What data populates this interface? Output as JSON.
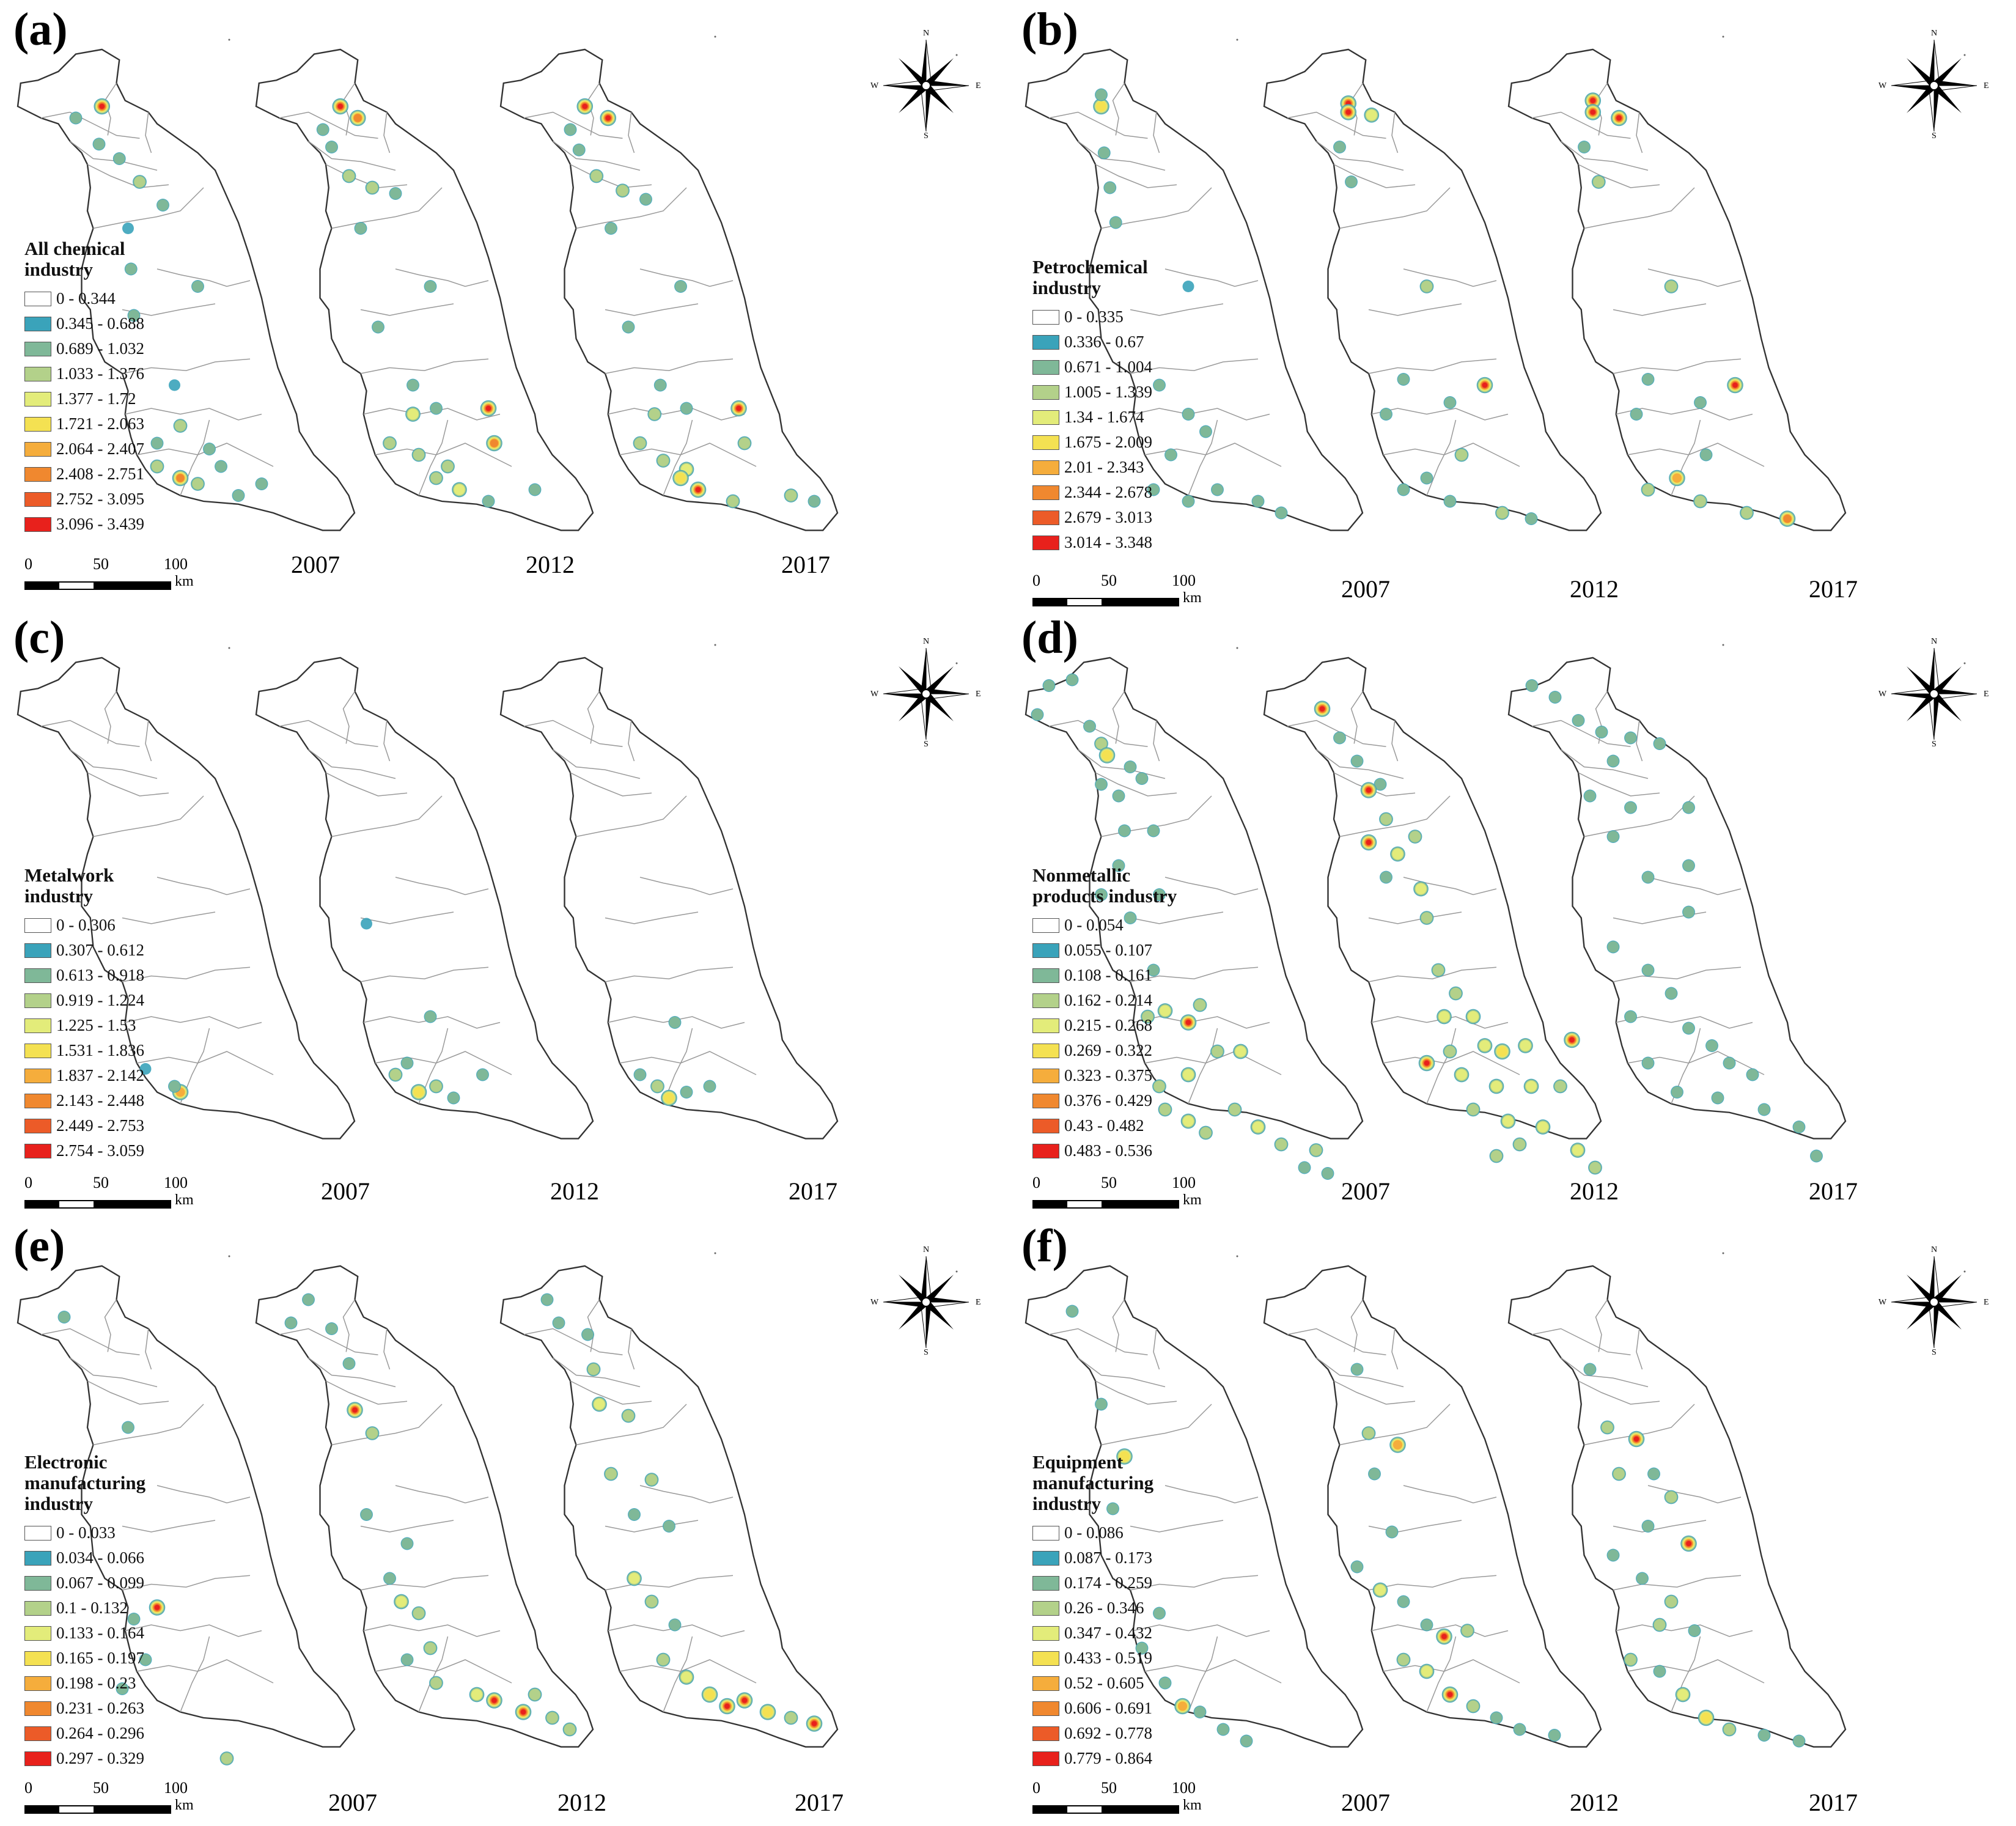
{
  "colors": [
    "#ffffff",
    "#3aa3ba",
    "#7fb898",
    "#b3d18a",
    "#e3ec7a",
    "#f4e152",
    "#f5ad3c",
    "#f0882f",
    "#ec5b28",
    "#e8211c"
  ],
  "compass": {
    "n": "N",
    "s": "S",
    "e": "E",
    "w": "W",
    "icon": "compass-rose-icon"
  },
  "scale": {
    "t0": "0",
    "t50": "50",
    "t100": "100",
    "unit": "km"
  },
  "panels": [
    {
      "label": "(a)",
      "title": "All chemical\nindustry",
      "years": [
        "2007",
        "2012",
        "2017"
      ],
      "classes": [
        "0 - 0.344",
        "0.345 - 0.688",
        "0.689 - 1.032",
        "1.033 - 1.376",
        "1.377 - 1.72",
        "1.721 - 2.063",
        "2.064 - 2.407",
        "2.408 - 2.751",
        "2.752 - 3.095",
        "3.096 - 3.439"
      ]
    },
    {
      "label": "(b)",
      "title": "Petrochemical\nindustry",
      "years": [
        "2007",
        "2012",
        "2017"
      ],
      "classes": [
        "0 - 0.335",
        "0.336 - 0.67",
        "0.671 - 1.004",
        "1.005 - 1.339",
        "1.34 - 1.674",
        "1.675 - 2.009",
        "2.01 - 2.343",
        "2.344 - 2.678",
        "2.679 - 3.013",
        "3.014 - 3.348"
      ]
    },
    {
      "label": "(c)",
      "title": "Metalwork\nindustry",
      "years": [
        "2007",
        "2012",
        "2017"
      ],
      "classes": [
        "0 - 0.306",
        "0.307 - 0.612",
        "0.613 - 0.918",
        "0.919 - 1.224",
        "1.225 - 1.53",
        "1.531 - 1.836",
        "1.837 - 2.142",
        "2.143 - 2.448",
        "2.449 - 2.753",
        "2.754 - 3.059"
      ]
    },
    {
      "label": "(d)",
      "title": "Nonmetallic\nproducts industry",
      "years": [
        "2007",
        "2012",
        "2017"
      ],
      "classes": [
        "0 - 0.054",
        "0.055 - 0.107",
        "0.108 - 0.161",
        "0.162 - 0.214",
        "0.215 - 0.268",
        "0.269 - 0.322",
        "0.323 - 0.375",
        "0.376 - 0.429",
        "0.43 - 0.482",
        "0.483 - 0.536"
      ]
    },
    {
      "label": "(e)",
      "title": "Electronic\nmanufacturing\nindustry",
      "years": [
        "2007",
        "2012",
        "2017"
      ],
      "classes": [
        "0 - 0.033",
        "0.034 - 0.066",
        "0.067 - 0.099",
        "0.1 - 0.132",
        "0.133 - 0.164",
        "0.165 - 0.197",
        "0.198 - 0.23",
        "0.231 - 0.263",
        "0.264 - 0.296",
        "0.297 - 0.329"
      ]
    },
    {
      "label": "(f)",
      "title": "Equipment\nmanufacturing\nindustry",
      "years": [
        "2007",
        "2012",
        "2017"
      ],
      "classes": [
        "0 - 0.086",
        "0.087 - 0.173",
        "0.174 - 0.259",
        "0.26 - 0.346",
        "0.347 - 0.432",
        "0.433 - 0.519",
        "0.52 - 0.605",
        "0.606 - 0.691",
        "0.692 - 0.778",
        "0.779 - 0.864"
      ]
    }
  ]
}
